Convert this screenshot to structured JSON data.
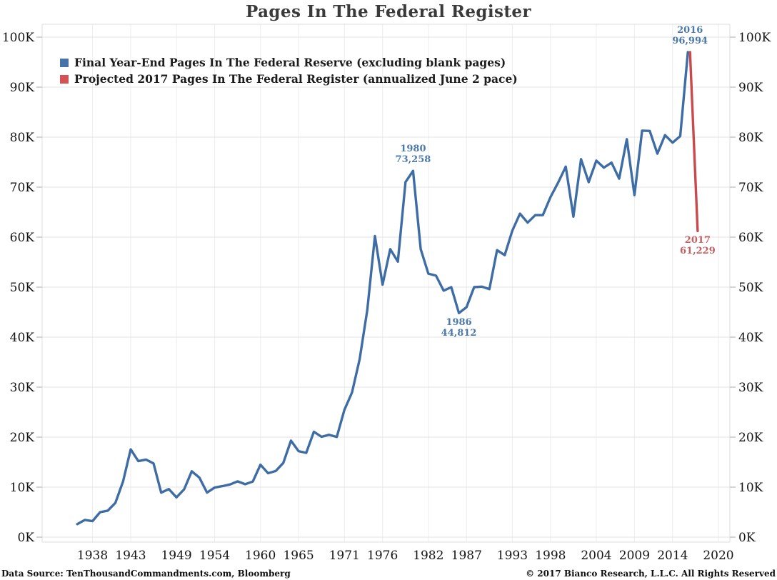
{
  "title": "Pages In The Federal Register",
  "footer": {
    "left": "Data Source: TenThousandCommandments.com, Bloomberg",
    "right": "© 2017 Bianco Research, L.L.C. All Rights Reserved"
  },
  "chart_data": {
    "type": "line",
    "title": "Pages In The Federal Register",
    "grid": true,
    "y_axis": {
      "min": 0,
      "max": 100000,
      "tick_step": 10000,
      "tick_labels": [
        "0K",
        "10K",
        "20K",
        "30K",
        "40K",
        "50K",
        "60K",
        "70K",
        "80K",
        "90K",
        "100K"
      ],
      "sides": "both"
    },
    "x_axis": {
      "tick_years": [
        1938,
        1943,
        1949,
        1954,
        1960,
        1965,
        1971,
        1976,
        1982,
        1987,
        1993,
        1998,
        2004,
        2009,
        2014,
        2020
      ]
    },
    "legend": {
      "position": "top-left",
      "entries": [
        {
          "label": "Final Year-End Pages In The Federal Reserve (excluding blank pages)",
          "color": "#4673A8"
        },
        {
          "label": "Projected 2017 Pages In The Federal Register (annualized June 2 pace)",
          "color": "#D45254"
        }
      ]
    },
    "series": [
      {
        "name": "Final Year-End Pages In The Federal Reserve (excluding blank pages)",
        "color": "#3E6CA5",
        "start_year": 1936,
        "values": [
          2620,
          3450,
          3194,
          5007,
          5307,
          6877,
          11134,
          17553,
          15194,
          15508,
          14736,
          8902,
          9608,
          7952,
          9562,
          13175,
          11896,
          8912,
          9910,
          10196,
          10528,
          11156,
          10579,
          11116,
          14479,
          12792,
          13226,
          14842,
          19304,
          17206,
          16850,
          21088,
          20072,
          20466,
          20036,
          25447,
          28924,
          35592,
          45422,
          60221,
          50500,
          57600,
          55100,
          71000,
          73258,
          57600,
          52700,
          52300,
          49300,
          50000,
          44812,
          46000,
          50000,
          50100,
          49600,
          57400,
          56400,
          61300,
          64700,
          62900,
          64400,
          64400,
          68000,
          70900,
          74100,
          64100,
          75600,
          71000,
          75300,
          73900,
          74900,
          71700,
          79600,
          68400,
          81300,
          81250,
          76700,
          80400,
          78900,
          80200,
          96994
        ]
      },
      {
        "name": "Projected 2017 Pages In The Federal Register (annualized June 2 pace)",
        "color": "#C9494D",
        "years": [
          2016,
          2017
        ],
        "values": [
          96994,
          61229
        ]
      }
    ],
    "annotations": [
      {
        "label_year": "2016",
        "label_value": "96,994",
        "year": 2016,
        "value": 96994,
        "placement": "above",
        "color": "#4C79AB"
      },
      {
        "label_year": "1980",
        "label_value": "73,258",
        "year": 1980,
        "value": 73258,
        "placement": "above",
        "color": "#4C79AB"
      },
      {
        "label_year": "1986",
        "label_value": "44,812",
        "year": 1986,
        "value": 44812,
        "placement": "below",
        "color": "#4C79AB"
      },
      {
        "label_year": "2017",
        "label_value": "61,229",
        "year": 2017,
        "value": 61229,
        "placement": "below",
        "color": "#C66060"
      }
    ]
  }
}
